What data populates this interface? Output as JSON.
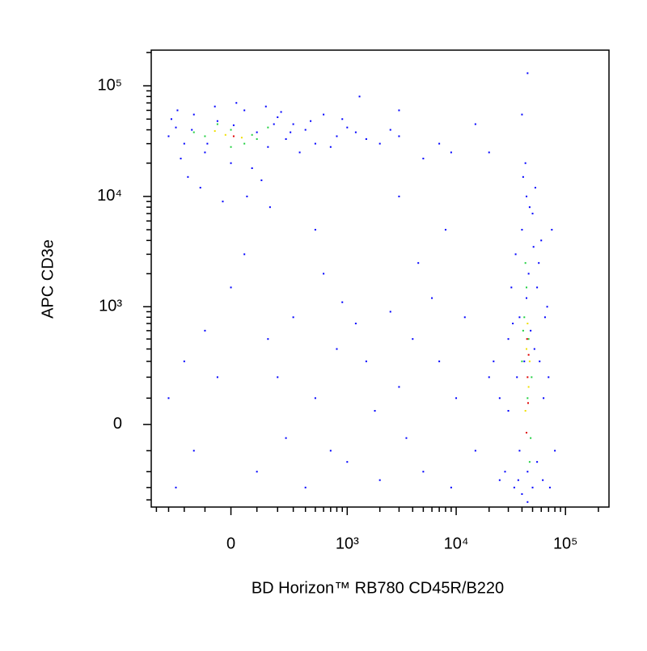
{
  "chart_data": {
    "type": "scatter",
    "xlabel": "BD Horizon™ RB780 CD45R/B220",
    "ylabel": "APC CD3e",
    "xscale": "biexponential",
    "yscale": "biexponential",
    "xlim": [
      -450,
      250000
    ],
    "ylim": [
      -470,
      210000
    ],
    "xticks": [
      0,
      {
        "value": 1000,
        "label": "10³"
      },
      {
        "value": 10000,
        "label": "10⁴"
      },
      {
        "value": 100000,
        "label": "10⁵"
      }
    ],
    "yticks": [
      0,
      {
        "value": 1000,
        "label": "10³"
      },
      {
        "value": 10000,
        "label": "10⁴"
      },
      {
        "value": 100000,
        "label": "10⁵"
      }
    ],
    "xminor": [
      -400,
      -300,
      -200,
      -100,
      100,
      200,
      300,
      400,
      500,
      600,
      700,
      800,
      900,
      2000,
      3000,
      4000,
      5000,
      6000,
      7000,
      8000,
      9000,
      20000,
      30000,
      40000,
      50000,
      60000,
      70000,
      80000,
      90000,
      200000
    ],
    "yminor": [
      -400,
      -300,
      -200,
      -100,
      100,
      200,
      300,
      400,
      500,
      600,
      700,
      800,
      900,
      2000,
      3000,
      4000,
      5000,
      6000,
      7000,
      8000,
      9000,
      20000,
      30000,
      40000,
      50000,
      60000,
      70000,
      80000,
      90000,
      200000
    ],
    "series": [
      {
        "color": "#0000ff",
        "x": [
          -250,
          -200,
          -150,
          -100,
          -50,
          0,
          50,
          100,
          150,
          200,
          250,
          300,
          400,
          500,
          600,
          800,
          1000,
          -300,
          -280,
          -220,
          -180,
          -120,
          -60,
          20,
          80,
          120,
          180,
          220,
          350,
          450,
          700,
          900,
          1200,
          1500,
          2000,
          3000,
          5000,
          -240,
          60,
          -30,
          160,
          -90,
          10,
          280,
          -160,
          140,
          3000,
          2500,
          7000,
          15000,
          9000,
          1300,
          40000,
          45000,
          20000,
          -200,
          -150,
          -100,
          0,
          100,
          200,
          300,
          400,
          500,
          600,
          800,
          1000,
          1200,
          1500,
          2000,
          2500,
          3000,
          4000,
          5000,
          6000,
          7000,
          8000,
          10000,
          12000,
          15000,
          -250,
          -300,
          50,
          150,
          250,
          -50,
          700,
          900,
          1800,
          3500,
          4500,
          9000,
          20000,
          25000,
          3000,
          500,
          25000,
          28000,
          30000,
          32000,
          34000,
          35000,
          36000,
          38000,
          38000,
          40000,
          40000,
          42000,
          44000,
          44000,
          45000,
          46000,
          48000,
          50000,
          50000,
          52000,
          55000,
          55000,
          58000,
          60000,
          62000,
          65000,
          70000,
          75000,
          80000,
          30000,
          33000,
          37000,
          41000,
          43000,
          47000,
          53000,
          57000,
          63000,
          68000,
          72000,
          22000,
          45000,
          51000
        ],
        "y": [
          42000,
          30000,
          55000,
          25000,
          48000,
          20000,
          60000,
          38000,
          28000,
          52000,
          33000,
          45000,
          40000,
          30000,
          55000,
          35000,
          42000,
          35000,
          50000,
          22000,
          15000,
          12000,
          65000,
          70000,
          18000,
          14000,
          45000,
          58000,
          25000,
          48000,
          28000,
          50000,
          38000,
          33000,
          30000,
          35000,
          22000,
          60000,
          10000,
          9000,
          8000,
          30000,
          44000,
          38000,
          40000,
          65000,
          60000,
          40000,
          30000,
          45000,
          25000,
          80000,
          55000,
          130000,
          25000,
          300,
          -100,
          600,
          1500,
          -200,
          200,
          800,
          -300,
          100,
          2000,
          400,
          -150,
          700,
          300,
          -250,
          900,
          150,
          500,
          -200,
          1200,
          300,
          5000,
          100,
          800,
          -100,
          -300,
          100,
          3000,
          500,
          -50,
          200,
          -100,
          1100,
          50,
          -50,
          2500,
          -300,
          200,
          -250,
          10000,
          5000,
          100,
          -200,
          500,
          1500,
          -300,
          3000,
          200,
          800,
          -100,
          5000,
          -350,
          300,
          1200,
          10000,
          -200,
          2000,
          600,
          -300,
          7000,
          400,
          1500,
          -150,
          300,
          4000,
          -250,
          800,
          200,
          5000,
          -100,
          50,
          700,
          -250,
          15000,
          20000,
          8000,
          12000,
          2500,
          100,
          1000,
          -300,
          300,
          -420,
          3500
        ]
      },
      {
        "color": "#20d040",
        "x": [
          -100,
          0,
          50,
          -50,
          100,
          -150,
          150,
          0,
          80,
          40000,
          45000,
          42000,
          48000,
          44000,
          46000,
          43000,
          47000,
          41000,
          49000
        ],
        "y": [
          35000,
          40000,
          30000,
          45000,
          33000,
          38000,
          42000,
          28000,
          36000,
          300,
          100,
          800,
          -50,
          1500,
          500,
          2500,
          -150,
          600,
          200
        ]
      },
      {
        "color": "#f0e000",
        "x": [
          -20,
          40,
          -60,
          44000,
          46000,
          43000,
          45000,
          47000
        ],
        "y": [
          36000,
          34000,
          39000,
          400,
          150,
          50,
          700,
          300
        ]
      },
      {
        "color": "#e00000",
        "x": [
          10,
          45000,
          44000,
          46000,
          45500,
          44500
        ],
        "y": [
          35000,
          200,
          -30,
          350,
          80,
          500
        ]
      }
    ]
  }
}
